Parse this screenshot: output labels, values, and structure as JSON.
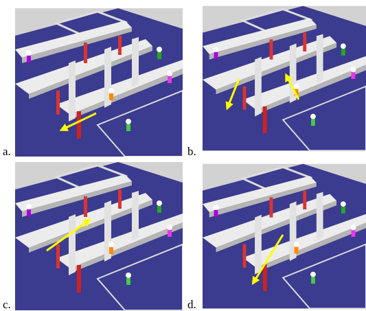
{
  "panels": [
    {
      "label": "a."
    },
    {
      "label": "b."
    },
    {
      "label": "c."
    },
    {
      "label": "d."
    }
  ]
}
